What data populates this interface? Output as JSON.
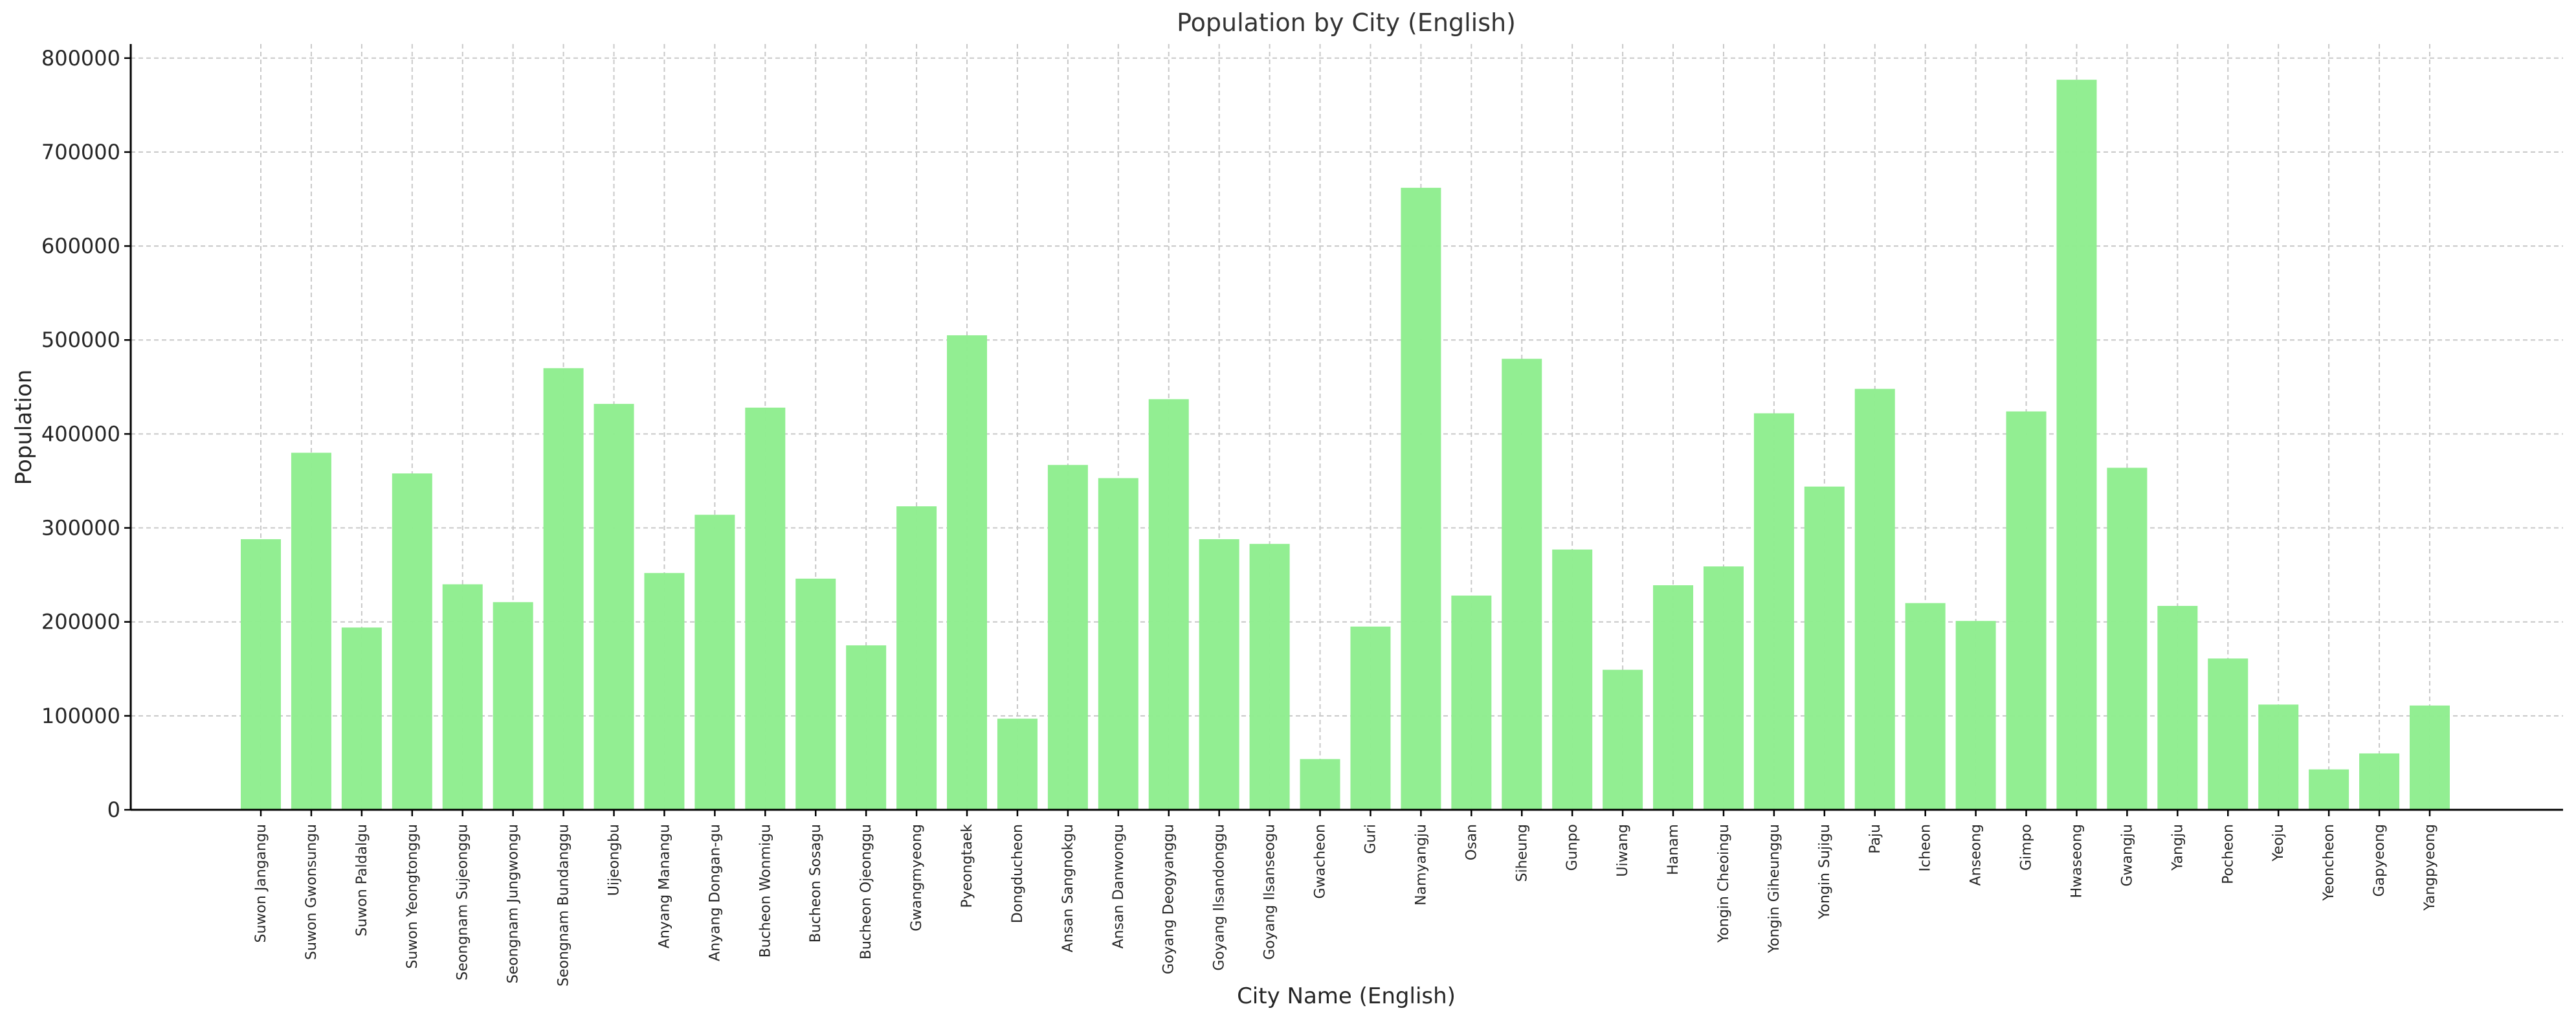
{
  "chart_data": {
    "type": "bar",
    "title": "Population by City (English)",
    "xlabel": "City Name (English)",
    "ylabel": "Population",
    "ylim": [
      0,
      815000
    ],
    "yticks": [
      0,
      100000,
      200000,
      300000,
      400000,
      500000,
      600000,
      700000,
      800000
    ],
    "ytick_labels": [
      "0",
      "100000",
      "200000",
      "300000",
      "400000",
      "500000",
      "600000",
      "700000",
      "800000"
    ],
    "grid": true,
    "bar_color": "#90EE90",
    "categories": [
      "Suwon Jangangu",
      "Suwon Gwonsungu",
      "Suwon Paldalgu",
      "Suwon Yeongtonggu",
      "Seongnam Sujeonggu",
      "Seongnam Jungwongu",
      "Seongnam Bundanggu",
      "Uijeongbu",
      "Anyang Manangu",
      "Anyang Dongan-gu",
      "Bucheon Wonmigu",
      "Bucheon Sosagu",
      "Bucheon Ojeonggu",
      "Gwangmyeong",
      "Pyeongtaek",
      "Dongducheon",
      "Ansan Sangnokgu",
      "Ansan Danwongu",
      "Goyang Deogyanggu",
      "Goyang Ilsandonggu",
      "Goyang Ilsanseogu",
      "Gwacheon",
      "Guri",
      "Namyangju",
      "Osan",
      "Siheung",
      "Gunpo",
      "Uiwang",
      "Hanam",
      "Yongin Cheoingu",
      "Yongin Giheunggu",
      "Yongin Sujigu",
      "Paju",
      "Icheon",
      "Anseong",
      "Gimpo",
      "Hwaseong",
      "Gwangju",
      "Yangju",
      "Pocheon",
      "Yeoju",
      "Yeoncheon",
      "Gapyeong",
      "Yangpyeong"
    ],
    "values": [
      288000,
      380000,
      194000,
      358000,
      240000,
      221000,
      470000,
      432000,
      252000,
      314000,
      428000,
      246000,
      175000,
      323000,
      505000,
      97000,
      367000,
      353000,
      437000,
      288000,
      283000,
      54000,
      195000,
      662000,
      228000,
      480000,
      277000,
      149000,
      239000,
      259000,
      422000,
      344000,
      448000,
      220000,
      201000,
      424000,
      777000,
      364000,
      217000,
      161000,
      112000,
      43000,
      60000,
      111000
    ]
  }
}
